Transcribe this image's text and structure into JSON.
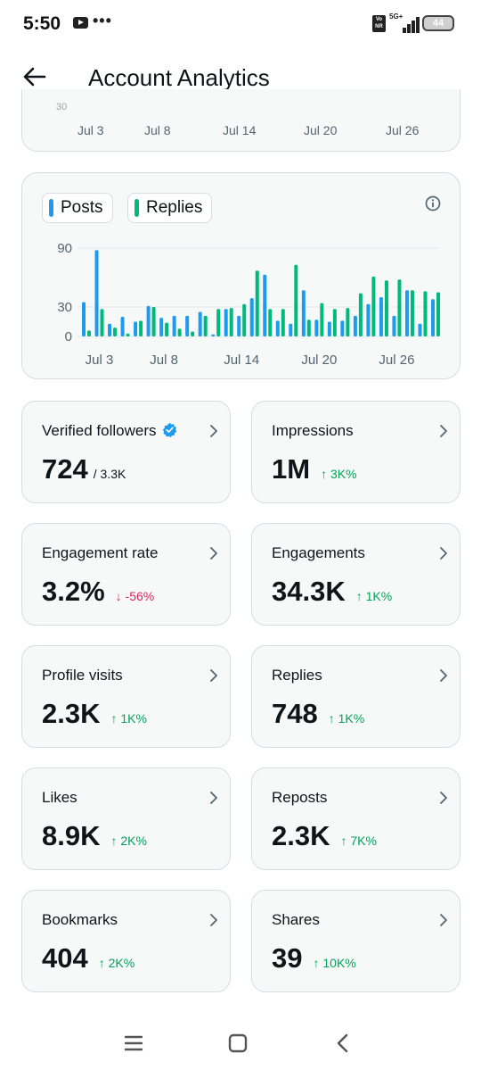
{
  "status_bar": {
    "time": "5:50",
    "dots": "•••",
    "network": "5G+",
    "volte": "Vo NR",
    "battery": "44"
  },
  "header": {
    "title": "Account Analytics"
  },
  "top_chart": {
    "cut_tick": "30",
    "x_labels": [
      "Jul 3",
      "Jul 8",
      "Jul 14",
      "Jul 20",
      "Jul 26"
    ]
  },
  "colors": {
    "posts": "#1d9bf0",
    "replies": "#00ba7c",
    "up": "#00a35a",
    "down": "#e0245e",
    "verified": "#1d9bf0"
  },
  "chart_data": {
    "type": "bar",
    "title": "",
    "legend": [
      "Posts",
      "Replies"
    ],
    "legend_placement": "top-left",
    "yticks": [
      0,
      30,
      90
    ],
    "ylim": [
      0,
      90
    ],
    "grid": true,
    "xticks": [
      "Jul 3",
      "Jul 8",
      "Jul 14",
      "Jul 20",
      "Jul 26"
    ],
    "categories": [
      "Jul 2",
      "Jul 3",
      "Jul 4",
      "Jul 5",
      "Jul 6",
      "Jul 7",
      "Jul 8",
      "Jul 9",
      "Jul 10",
      "Jul 11",
      "Jul 12",
      "Jul 13",
      "Jul 14",
      "Jul 15",
      "Jul 16",
      "Jul 17",
      "Jul 18",
      "Jul 19",
      "Jul 20",
      "Jul 21",
      "Jul 22",
      "Jul 23",
      "Jul 24",
      "Jul 25",
      "Jul 26",
      "Jul 27",
      "Jul 28",
      "Jul 29"
    ],
    "series": [
      {
        "name": "Posts",
        "values": [
          35,
          88,
          13,
          20,
          15,
          31,
          19,
          21,
          21,
          25,
          2,
          28,
          21,
          39,
          63,
          16,
          13,
          47,
          17,
          15,
          16,
          21,
          33,
          40,
          21,
          47,
          13,
          38
        ]
      },
      {
        "name": "Replies",
        "values": [
          6,
          28,
          9,
          3,
          16,
          30,
          14,
          8,
          5,
          21,
          28,
          29,
          33,
          67,
          28,
          28,
          73,
          17,
          34,
          28,
          29,
          44,
          61,
          57,
          58,
          47,
          46,
          45
        ]
      }
    ]
  },
  "cards": [
    {
      "label": "Verified followers",
      "value": "724",
      "sub": "/ 3.3K",
      "delta": "",
      "direction": "none",
      "verified": true
    },
    {
      "label": "Impressions",
      "value": "1M",
      "sub": "",
      "delta": "↑ 3K%",
      "direction": "up"
    },
    {
      "label": "Engagement rate",
      "value": "3.2%",
      "sub": "",
      "delta": "↓ -56%",
      "direction": "down"
    },
    {
      "label": "Engagements",
      "value": "34.3K",
      "sub": "",
      "delta": "↑ 1K%",
      "direction": "up"
    },
    {
      "label": "Profile visits",
      "value": "2.3K",
      "sub": "",
      "delta": "↑ 1K%",
      "direction": "up"
    },
    {
      "label": "Replies",
      "value": "748",
      "sub": "",
      "delta": "↑ 1K%",
      "direction": "up"
    },
    {
      "label": "Likes",
      "value": "8.9K",
      "sub": "",
      "delta": "↑ 2K%",
      "direction": "up"
    },
    {
      "label": "Reposts",
      "value": "2.3K",
      "sub": "",
      "delta": "↑ 7K%",
      "direction": "up"
    },
    {
      "label": "Bookmarks",
      "value": "404",
      "sub": "",
      "delta": "↑ 2K%",
      "direction": "up"
    },
    {
      "label": "Shares",
      "value": "39",
      "sub": "",
      "delta": "↑ 10K%",
      "direction": "up"
    }
  ],
  "icons": {
    "back": "arrow-left-icon",
    "info": "info-circle-icon",
    "chevron": "chevron-right-icon",
    "verified": "verified-badge-icon"
  }
}
